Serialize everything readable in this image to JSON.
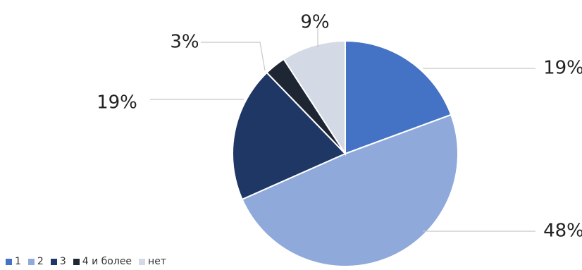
{
  "chart_data": {
    "type": "pie",
    "title": "",
    "categories": [
      "1",
      "2",
      "3",
      "4 и более",
      "нет"
    ],
    "values": [
      19,
      48,
      19,
      3,
      9
    ],
    "labels": [
      "19%",
      "48%",
      "19%",
      "3%",
      "9%"
    ],
    "colors": [
      "#4472c4",
      "#8fa9db",
      "#1f3764",
      "#1e2533",
      "#d4d9e6"
    ],
    "start_angle_deg": 0,
    "direction": "clockwise",
    "legend_position": "bottom-left"
  }
}
